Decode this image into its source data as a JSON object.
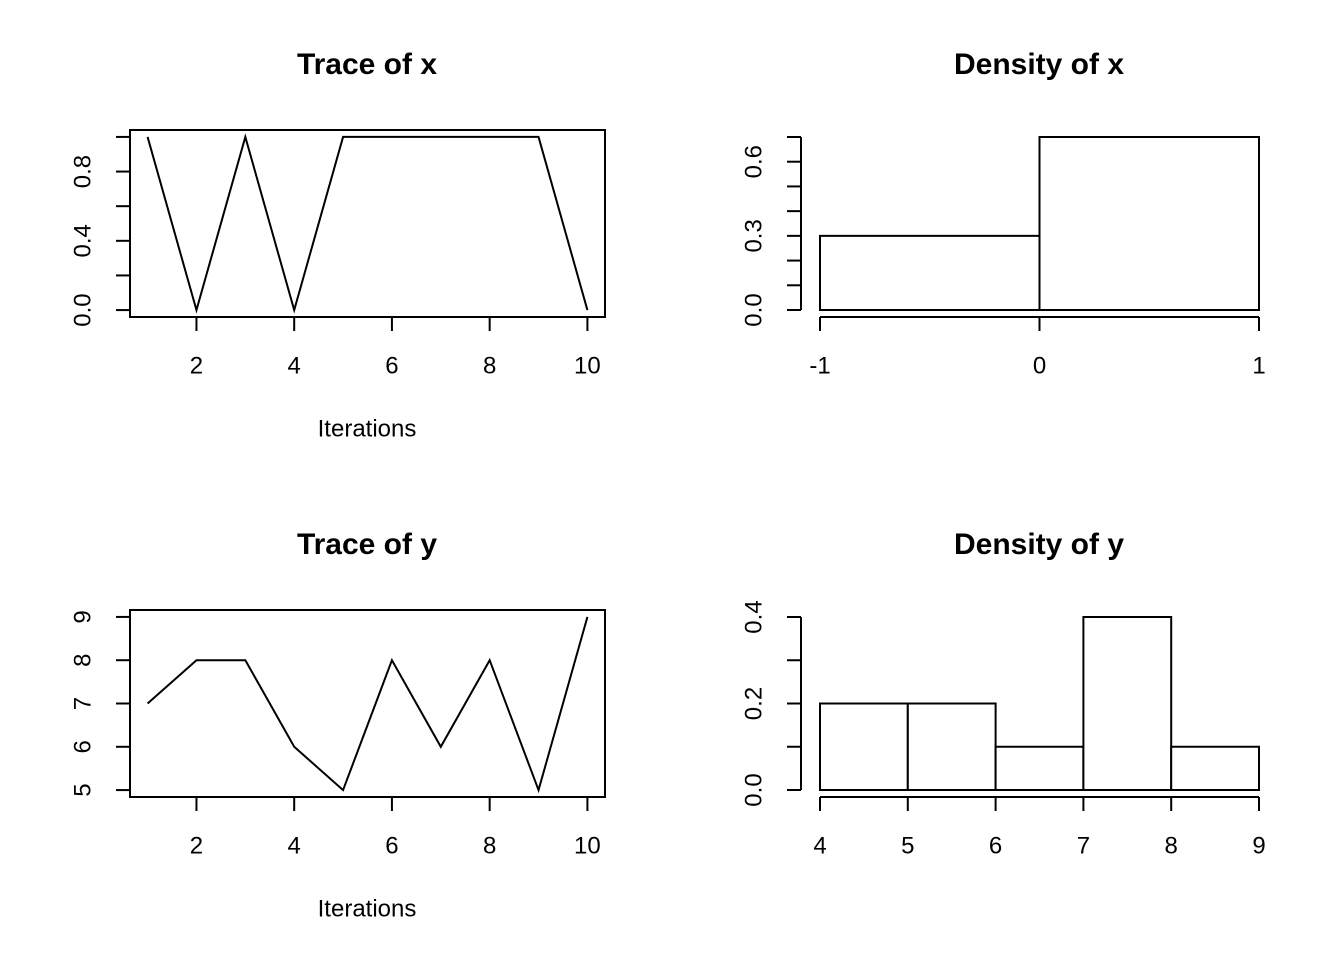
{
  "chart_data": [
    {
      "type": "line",
      "title": "Trace of x",
      "xlabel": "Iterations",
      "ylabel": "",
      "x": [
        1,
        2,
        3,
        4,
        5,
        6,
        7,
        8,
        9,
        10
      ],
      "series": [
        {
          "values": [
            1,
            0,
            1,
            0,
            1,
            1,
            1,
            1,
            1,
            0
          ]
        }
      ],
      "xlim": [
        0.64,
        10.36
      ],
      "ylim": [
        -0.04,
        1.04
      ],
      "xticks": [
        2,
        4,
        6,
        8,
        10
      ],
      "xtick_labels": [
        "2",
        "4",
        "6",
        "8",
        "10"
      ],
      "yticks": [
        0,
        0.2,
        0.4,
        0.6,
        0.8,
        1.0
      ],
      "ytick_labels": [
        "0.0",
        "",
        "0.4",
        "",
        "0.8",
        ""
      ],
      "box": true,
      "grid": false
    },
    {
      "type": "bar",
      "title": "Density of x",
      "xlabel": "",
      "ylabel": "",
      "bins": [
        [
          -1,
          0
        ],
        [
          0,
          1
        ]
      ],
      "values": [
        0.3,
        0.7
      ],
      "xlim": [
        -1,
        1
      ],
      "ylim": [
        0,
        0.7
      ],
      "xticks": [
        -1,
        0,
        1
      ],
      "xtick_labels": [
        "-1",
        "0",
        "1"
      ],
      "yticks": [
        0,
        0.1,
        0.2,
        0.3,
        0.4,
        0.5,
        0.6,
        0.7
      ],
      "ytick_labels": [
        "0.0",
        "",
        "",
        "0.3",
        "",
        "",
        "0.6",
        ""
      ],
      "box": false,
      "grid": false
    },
    {
      "type": "line",
      "title": "Trace of y",
      "xlabel": "Iterations",
      "ylabel": "",
      "x": [
        1,
        2,
        3,
        4,
        5,
        6,
        7,
        8,
        9,
        10
      ],
      "series": [
        {
          "values": [
            7,
            8,
            8,
            6,
            5,
            8,
            6,
            8,
            5,
            9
          ]
        }
      ],
      "xlim": [
        0.64,
        10.36
      ],
      "ylim": [
        4.84,
        9.16
      ],
      "xticks": [
        2,
        4,
        6,
        8,
        10
      ],
      "xtick_labels": [
        "2",
        "4",
        "6",
        "8",
        "10"
      ],
      "yticks": [
        5,
        6,
        7,
        8,
        9
      ],
      "ytick_labels": [
        "5",
        "6",
        "7",
        "8",
        "9"
      ],
      "box": true,
      "grid": false
    },
    {
      "type": "bar",
      "title": "Density of y",
      "xlabel": "",
      "ylabel": "",
      "bins": [
        [
          4,
          5
        ],
        [
          5,
          6
        ],
        [
          6,
          7
        ],
        [
          7,
          8
        ],
        [
          8,
          9
        ]
      ],
      "values": [
        0.2,
        0.2,
        0.1,
        0.4,
        0.1
      ],
      "xlim": [
        4,
        9
      ],
      "ylim": [
        0,
        0.4
      ],
      "xticks": [
        4,
        5,
        6,
        7,
        8,
        9
      ],
      "xtick_labels": [
        "4",
        "5",
        "6",
        "7",
        "8",
        "9"
      ],
      "yticks": [
        0,
        0.1,
        0.2,
        0.3,
        0.4
      ],
      "ytick_labels": [
        "0.0",
        "",
        "0.2",
        "",
        "0.4"
      ],
      "box": false,
      "grid": false
    }
  ]
}
